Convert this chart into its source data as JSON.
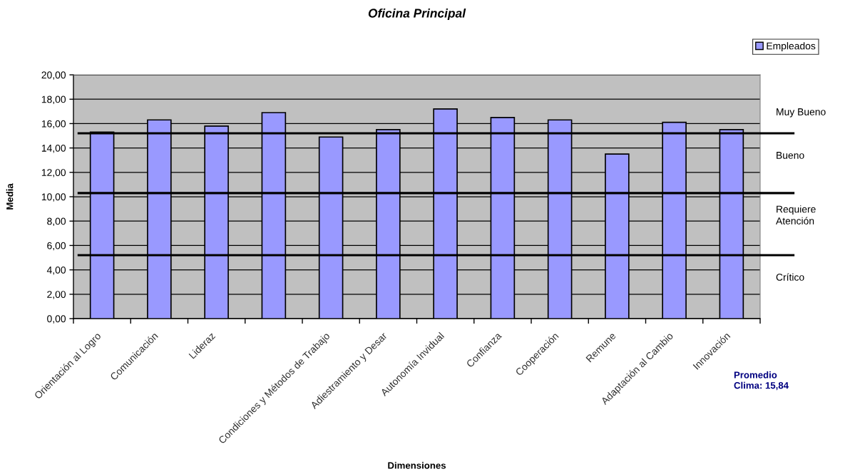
{
  "chart_data": {
    "type": "bar",
    "title": "Oficina Principal",
    "xlabel": "Dimensiones",
    "ylabel": "Media",
    "categories": [
      "Orientación al Logro",
      "Comunicación",
      "Lideraz",
      null,
      "Condiciones y Métodos de Trabajo",
      "Adiestramiento y Desar",
      "Autonomía Invidual",
      "Confianza",
      "Cooperación",
      "Remune",
      "Adaptación al Cambio",
      "Innovación"
    ],
    "series": [
      {
        "name": "Empleados",
        "color": "#9999ff",
        "values": [
          15.3,
          16.3,
          15.8,
          16.9,
          14.9,
          15.5,
          17.2,
          16.5,
          16.3,
          13.5,
          16.1,
          15.5
        ]
      }
    ],
    "ylim": [
      0,
      20
    ],
    "yticks": [
      {
        "value": 0,
        "label": "0,00"
      },
      {
        "value": 2,
        "label": "2,00"
      },
      {
        "value": 4,
        "label": "4,00"
      },
      {
        "value": 6,
        "label": "6,00"
      },
      {
        "value": 8,
        "label": "8,00"
      },
      {
        "value": 10,
        "label": "10,00"
      },
      {
        "value": 12,
        "label": "12,00"
      },
      {
        "value": 14,
        "label": "14,00"
      },
      {
        "value": 16,
        "label": "16,00"
      },
      {
        "value": 18,
        "label": "18,00"
      },
      {
        "value": 20,
        "label": "20,00"
      }
    ],
    "grid": "y",
    "legend": "top right",
    "ref_lines": [
      {
        "axis": "y",
        "value": 15.2,
        "color": "#000000"
      },
      {
        "axis": "y",
        "value": 10.3,
        "color": "#000000"
      },
      {
        "axis": "y",
        "value": 5.2,
        "color": "#000000"
      }
    ],
    "annotations": [
      "Muy Bueno",
      "Bueno",
      "Requiere\nAtención",
      "Crítico",
      "Promedio\nClima: 15,84"
    ]
  }
}
